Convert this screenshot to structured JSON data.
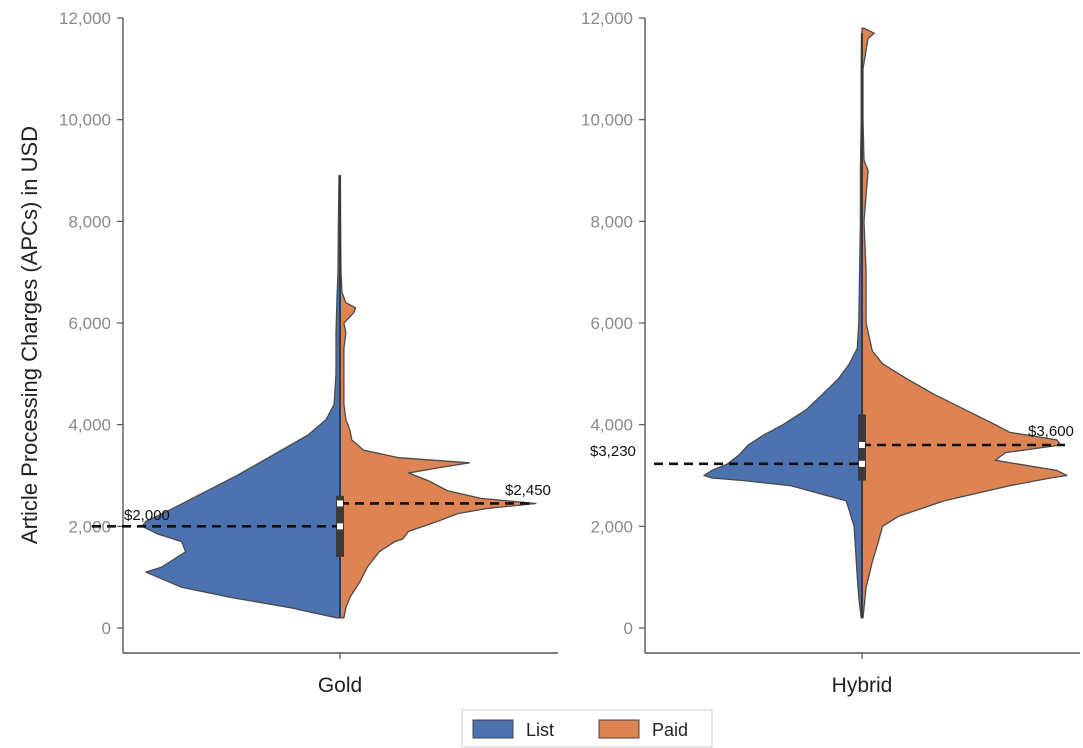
{
  "chart_data": {
    "type": "violin",
    "ylabel": "Article Processing Charges (APCs) in USD",
    "ylim": [
      -500,
      12000
    ],
    "yticks": [
      "0",
      "2,000",
      "4,000",
      "6,000",
      "8,000",
      "10,000",
      "12,000"
    ],
    "ytick_values": [
      0,
      2000,
      4000,
      6000,
      8000,
      10000,
      12000
    ],
    "legend": {
      "position": "bottom-center",
      "entries": [
        "List",
        "Paid"
      ]
    },
    "colors": {
      "List": "#4C72B0",
      "Paid": "#DD8452",
      "outline": "#4a4a4a",
      "axis": "#555555"
    },
    "panels": [
      {
        "category": "Gold",
        "medians": {
          "List": 2000,
          "Paid": 2450
        },
        "annotations": {
          "List": "$2,000",
          "Paid": "$2,450"
        },
        "box": {
          "q1": 1400,
          "q3": 2600,
          "min": 200,
          "max": 8900
        },
        "density": {
          "List": [
            [
              200,
              0.02
            ],
            [
              400,
              0.25
            ],
            [
              600,
              0.55
            ],
            [
              800,
              0.8
            ],
            [
              1000,
              0.92
            ],
            [
              1100,
              0.98
            ],
            [
              1200,
              0.9
            ],
            [
              1500,
              0.78
            ],
            [
              1700,
              0.8
            ],
            [
              1850,
              0.92
            ],
            [
              2000,
              1.0
            ],
            [
              2100,
              0.98
            ],
            [
              2300,
              0.87
            ],
            [
              2600,
              0.72
            ],
            [
              3000,
              0.52
            ],
            [
              3400,
              0.34
            ],
            [
              3800,
              0.16
            ],
            [
              4100,
              0.07
            ],
            [
              4400,
              0.03
            ],
            [
              5000,
              0.02
            ],
            [
              5800,
              0.02
            ],
            [
              6500,
              0.015
            ],
            [
              7000,
              0.01
            ],
            [
              8000,
              0.008
            ],
            [
              8900,
              0.005
            ]
          ],
          "Paid": [
            [
              200,
              0.02
            ],
            [
              400,
              0.03
            ],
            [
              600,
              0.05
            ],
            [
              900,
              0.1
            ],
            [
              1200,
              0.14
            ],
            [
              1500,
              0.2
            ],
            [
              1700,
              0.28
            ],
            [
              1750,
              0.32
            ],
            [
              1900,
              0.35
            ],
            [
              2100,
              0.5
            ],
            [
              2250,
              0.6
            ],
            [
              2350,
              0.75
            ],
            [
              2450,
              1.0
            ],
            [
              2550,
              0.72
            ],
            [
              2700,
              0.55
            ],
            [
              2900,
              0.45
            ],
            [
              3050,
              0.35
            ],
            [
              3150,
              0.5
            ],
            [
              3250,
              0.66
            ],
            [
              3350,
              0.3
            ],
            [
              3500,
              0.12
            ],
            [
              3700,
              0.06
            ],
            [
              3900,
              0.05
            ],
            [
              4100,
              0.03
            ],
            [
              4400,
              0.02
            ],
            [
              5000,
              0.02
            ],
            [
              5500,
              0.02
            ],
            [
              5800,
              0.03
            ],
            [
              6000,
              0.02
            ],
            [
              6200,
              0.07
            ],
            [
              6300,
              0.08
            ],
            [
              6400,
              0.03
            ],
            [
              6600,
              0.01
            ],
            [
              7000,
              0.005
            ],
            [
              8000,
              0.003
            ],
            [
              8900,
              0.002
            ]
          ]
        }
      },
      {
        "category": "Hybrid",
        "medians": {
          "List": 3230,
          "Paid": 3600
        },
        "annotations": {
          "List": "$3,230",
          "Paid": "$3,600"
        },
        "box": {
          "q1": 2900,
          "q3": 4200,
          "min": 200,
          "max": 11700
        },
        "density": {
          "List": [
            [
              200,
              0.005
            ],
            [
              600,
              0.02
            ],
            [
              1000,
              0.03
            ],
            [
              1500,
              0.04
            ],
            [
              2000,
              0.05
            ],
            [
              2500,
              0.1
            ],
            [
              2800,
              0.45
            ],
            [
              2900,
              0.75
            ],
            [
              2950,
              0.95
            ],
            [
              3000,
              1.0
            ],
            [
              3100,
              0.95
            ],
            [
              3230,
              0.85
            ],
            [
              3400,
              0.78
            ],
            [
              3600,
              0.72
            ],
            [
              3800,
              0.62
            ],
            [
              4000,
              0.5
            ],
            [
              4300,
              0.35
            ],
            [
              4600,
              0.25
            ],
            [
              4900,
              0.15
            ],
            [
              5200,
              0.08
            ],
            [
              5500,
              0.03
            ],
            [
              6000,
              0.02
            ],
            [
              7000,
              0.015
            ],
            [
              8000,
              0.01
            ],
            [
              9000,
              0.01
            ],
            [
              10000,
              0.005
            ],
            [
              11000,
              0.005
            ],
            [
              11700,
              0.003
            ]
          ],
          "Paid": [
            [
              200,
              0.005
            ],
            [
              800,
              0.02
            ],
            [
              1300,
              0.05
            ],
            [
              1700,
              0.08
            ],
            [
              2000,
              0.1
            ],
            [
              2200,
              0.18
            ],
            [
              2500,
              0.4
            ],
            [
              2800,
              0.72
            ],
            [
              2950,
              0.92
            ],
            [
              3000,
              1.0
            ],
            [
              3100,
              0.95
            ],
            [
              3300,
              0.65
            ],
            [
              3450,
              0.7
            ],
            [
              3600,
              0.97
            ],
            [
              3700,
              0.95
            ],
            [
              3850,
              0.72
            ],
            [
              4000,
              0.65
            ],
            [
              4300,
              0.5
            ],
            [
              4600,
              0.35
            ],
            [
              4900,
              0.22
            ],
            [
              5200,
              0.1
            ],
            [
              5450,
              0.05
            ],
            [
              6000,
              0.02
            ],
            [
              6500,
              0.02
            ],
            [
              7000,
              0.02
            ],
            [
              8000,
              0.01
            ],
            [
              9000,
              0.03
            ],
            [
              9200,
              0.01
            ],
            [
              10000,
              0.005
            ],
            [
              11000,
              0.005
            ],
            [
              11600,
              0.03
            ],
            [
              11700,
              0.06
            ],
            [
              11800,
              0.01
            ]
          ]
        }
      }
    ]
  }
}
